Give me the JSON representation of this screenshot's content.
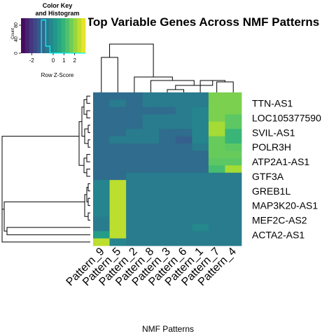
{
  "chart_data": {
    "type": "heatmap",
    "title": "Top Variable Genes Across NMF Patterns",
    "xlabel": "NMF Patterns",
    "ylabel": "",
    "columns": [
      "Pattern_9",
      "Pattern_5",
      "Pattern_2",
      "Pattern_8",
      "Pattern_3",
      "Pattern_6",
      "Pattern_1",
      "Pattern_7",
      "Pattern_4"
    ],
    "rows_labeled": [
      "TTN-AS1",
      "LOC105377590",
      "SVIL-AS1",
      "POLR3H",
      "ATP2A1-AS1",
      "GTF3A",
      "GREB1L",
      "MAP3K20-AS1",
      "MEF2C-AS2",
      "ACTA2-AS1"
    ],
    "row_z_scores": [
      [
        -0.9,
        -0.9,
        -0.9,
        -0.5,
        -0.5,
        -0.5,
        -0.5,
        1.8,
        1.8
      ],
      [
        -0.9,
        -0.5,
        -0.9,
        -0.5,
        -0.5,
        -0.5,
        -0.5,
        1.8,
        1.8
      ],
      [
        -0.9,
        -0.9,
        -0.9,
        -0.9,
        -0.9,
        -0.5,
        -0.3,
        1.8,
        1.8
      ],
      [
        -0.9,
        -0.9,
        -0.9,
        -0.5,
        -0.5,
        -0.5,
        -0.3,
        1.8,
        1.5
      ],
      [
        -0.9,
        -0.9,
        -0.9,
        -0.5,
        -0.5,
        -0.5,
        -0.3,
        2.2,
        1.5
      ],
      [
        -0.9,
        -0.9,
        -0.5,
        -0.5,
        -0.9,
        -0.9,
        -0.3,
        2.2,
        1.0
      ],
      [
        -0.9,
        -0.5,
        -0.5,
        -0.5,
        -0.9,
        -1.2,
        -0.3,
        1.6,
        1.0
      ],
      [
        -0.9,
        -0.9,
        -0.9,
        -0.9,
        -0.9,
        -0.9,
        -0.5,
        1.6,
        1.5
      ],
      [
        -0.9,
        -0.9,
        -0.9,
        -0.9,
        -0.9,
        -0.9,
        -0.9,
        1.6,
        1.6
      ],
      [
        -0.9,
        -0.9,
        -0.9,
        -0.9,
        -0.9,
        -0.9,
        -0.9,
        1.5,
        1.5
      ],
      [
        -0.9,
        -0.9,
        -0.9,
        -0.9,
        -0.9,
        -0.9,
        -0.9,
        1.2,
        2.2
      ],
      [
        -0.9,
        -0.9,
        -0.5,
        -0.5,
        -0.5,
        -0.5,
        -0.5,
        -0.5,
        -0.5
      ],
      [
        -0.3,
        2.4,
        -0.5,
        -0.5,
        -0.5,
        -0.5,
        -0.5,
        -0.5,
        -0.5
      ],
      [
        -0.3,
        2.4,
        -0.5,
        -0.5,
        -0.5,
        -0.5,
        -0.5,
        -0.5,
        -0.5
      ],
      [
        -0.3,
        2.4,
        -0.5,
        -0.5,
        -0.5,
        -0.5,
        -0.5,
        -0.5,
        -0.5
      ],
      [
        -0.3,
        2.4,
        -0.5,
        -0.5,
        -0.5,
        -0.5,
        -0.5,
        -0.5,
        -0.5
      ],
      [
        -0.3,
        2.4,
        -0.5,
        -0.5,
        -0.5,
        -0.5,
        -0.5,
        -0.5,
        -0.5
      ],
      [
        -0.5,
        2.4,
        -0.5,
        -0.5,
        -0.5,
        -0.5,
        -0.5,
        -0.5,
        -0.5
      ],
      [
        -0.5,
        2.4,
        -0.5,
        -0.5,
        -0.5,
        -0.5,
        -0.2,
        -0.5,
        -0.5
      ],
      [
        0.3,
        2.4,
        -0.5,
        -0.5,
        -0.5,
        -0.5,
        -0.5,
        -0.5,
        -0.5
      ],
      [
        2.4,
        -0.3,
        -0.5,
        -0.5,
        -0.5,
        -0.5,
        -0.5,
        -0.5,
        -0.5
      ]
    ],
    "z_range": [
      -3,
      3
    ],
    "colormap": [
      "#440154",
      "#472D7B",
      "#3B528B",
      "#2C728E",
      "#21908C",
      "#27AD81",
      "#5DC863",
      "#AADC32",
      "#FDE725"
    ],
    "key": {
      "title_line1": "Color Key",
      "title_line2": "and Histogram",
      "xlabel": "Row Z-Score",
      "ylabel": "Count",
      "x_ticks": [
        "-2",
        "0",
        "1",
        "2"
      ],
      "x_tick_values": [
        -2,
        0,
        1,
        2
      ],
      "y_ticks": [
        "0",
        "40",
        "80"
      ],
      "y_tick_values": [
        0,
        40,
        80
      ],
      "histogram_color": "#00FFFF"
    }
  }
}
